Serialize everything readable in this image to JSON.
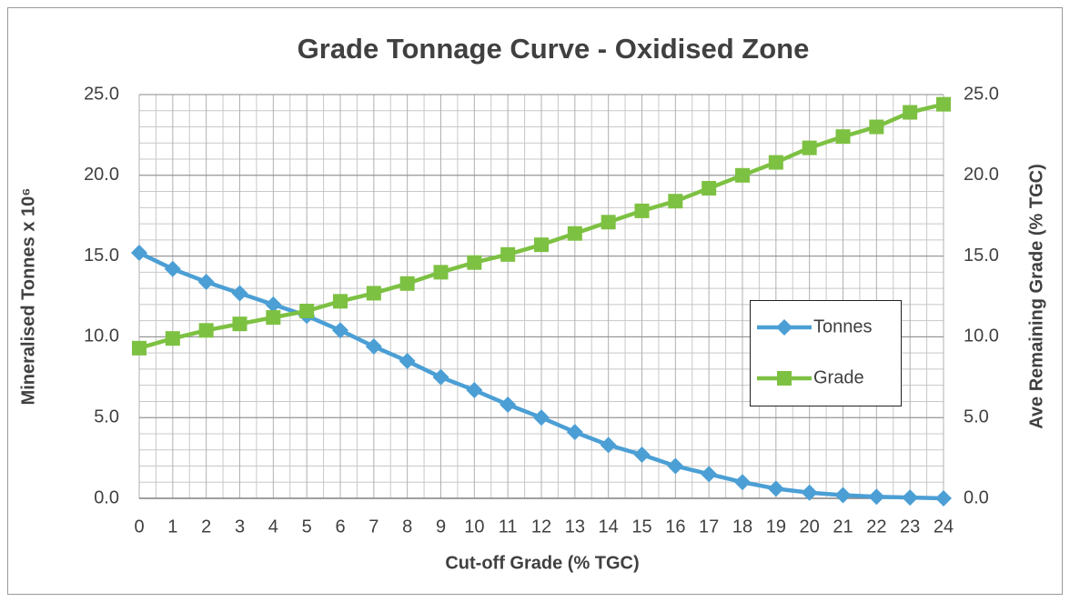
{
  "chart_data": {
    "type": "line",
    "title": "Grade  Tonnage Curve - Oxidised Zone",
    "x_label": "Cut-off Grade (% TGC)",
    "y_label": "Mineralised Tonnes x 10⁶",
    "y2_label": "Ave Remaining Grade (% TGC)",
    "categories": [
      "0",
      "1",
      "2",
      "3",
      "4",
      "5",
      "6",
      "7",
      "8",
      "9",
      "10",
      "11",
      "12",
      "13",
      "14",
      "15",
      "16",
      "17",
      "18",
      "19",
      "20",
      "21",
      "22",
      "23",
      "24"
    ],
    "series": [
      {
        "name": "Tonnes",
        "color": "#4b9fd5",
        "marker": "diamond",
        "values": [
          15.2,
          14.2,
          13.4,
          12.7,
          12.0,
          11.3,
          10.4,
          9.4,
          8.5,
          7.5,
          6.7,
          5.8,
          5.0,
          4.1,
          3.3,
          2.7,
          2.0,
          1.5,
          1.0,
          0.6,
          0.35,
          0.2,
          0.1,
          0.05,
          0.0
        ]
      },
      {
        "name": "Grade",
        "color": "#7dc142",
        "marker": "square",
        "axis": "y2",
        "values": [
          9.3,
          9.9,
          10.4,
          10.8,
          11.2,
          11.6,
          12.2,
          12.7,
          13.3,
          14.0,
          14.6,
          15.1,
          15.7,
          16.4,
          17.1,
          17.8,
          18.4,
          19.2,
          20.0,
          20.8,
          21.7,
          22.4,
          23.0,
          23.9,
          24.4
        ]
      }
    ],
    "ylim": [
      0,
      25
    ],
    "yticks": [
      {
        "value": 0,
        "label": "0.0"
      },
      {
        "value": 5,
        "label": "5.0"
      },
      {
        "value": 10,
        "label": "10.0"
      },
      {
        "value": 15,
        "label": "15.0"
      },
      {
        "value": 20,
        "label": "20.0"
      },
      {
        "value": 25,
        "label": "25.0"
      }
    ],
    "y2lim": [
      0,
      25
    ],
    "y2ticks": [
      {
        "value": 0,
        "label": "0.0"
      },
      {
        "value": 5,
        "label": "5.0"
      },
      {
        "value": 10,
        "label": "10.0"
      },
      {
        "value": 15,
        "label": "15.0"
      },
      {
        "value": 20,
        "label": "20.0"
      },
      {
        "value": 25,
        "label": "25.0"
      }
    ],
    "grid": true,
    "minor_grid": true,
    "legend_position": "right"
  }
}
